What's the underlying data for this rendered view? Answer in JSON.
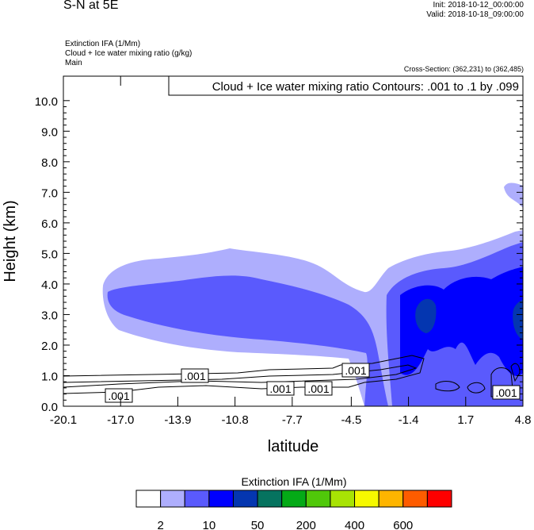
{
  "header": {
    "title": "S-N at 5E",
    "init": "Init: 2018-10-12_00:00:00",
    "valid": "Valid: 2018-10-18_09:00:00",
    "field1": "Extinction IFA   (1/Mm)",
    "field2": "Cloud + Ice water mixing ratio    (g/kg)",
    "field3": "Main",
    "cross_section": "Cross-Section: (362,231) to (362,485)"
  },
  "chart_data": {
    "type": "contour",
    "title": "Cloud + Ice water mixing ratio Contours: .001 to .1 by .099",
    "xlabel": "latitude",
    "ylabel": "Height (km)",
    "xlim": [
      -20.1,
      4.8
    ],
    "ylim": [
      0,
      10.8
    ],
    "xticks": [
      "-20.1",
      "-17.0",
      "-13.9",
      "-10.8",
      "-7.7",
      "-4.5",
      "-1.4",
      "1.7",
      "4.8"
    ],
    "xtick_values": [
      -20.1,
      -17.0,
      -13.9,
      -10.8,
      -7.7,
      -4.5,
      -1.4,
      1.7,
      4.8
    ],
    "yticks": [
      "0.0",
      "1.0",
      "2.0",
      "3.0",
      "4.0",
      "5.0",
      "6.0",
      "7.0",
      "8.0",
      "9.0",
      "10.0"
    ],
    "ytick_values": [
      0,
      1,
      2,
      3,
      4,
      5,
      6,
      7,
      8,
      9,
      10
    ],
    "contour_labels": [
      ".001",
      ".001",
      ".001",
      ".001",
      ".001",
      ".001"
    ],
    "colorbar": {
      "title": "Extinction IFA  (1/Mm)",
      "labels": [
        "2",
        "10",
        "50",
        "200",
        "400",
        "600"
      ],
      "colors": [
        "#ffffff",
        "#aeaefd",
        "#5a5afd",
        "#0000fe",
        "#0436b0",
        "#06735f",
        "#04aa17",
        "#50c80a",
        "#a8e304",
        "#f6f900",
        "#feb500",
        "#fe5c00",
        "#fe0000"
      ]
    }
  }
}
